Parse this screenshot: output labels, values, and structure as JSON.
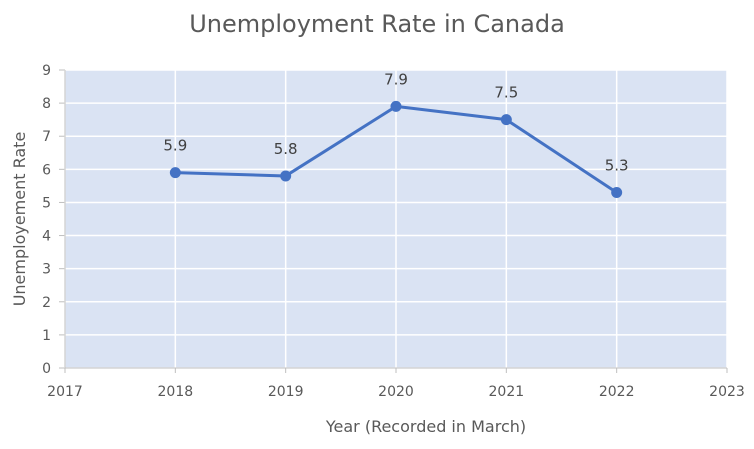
{
  "chart_data": {
    "type": "line",
    "title": "Unemployment Rate in Canada",
    "xlabel": "Year (Recorded in March)",
    "ylabel": "Unemployement Rate",
    "x": [
      2018,
      2019,
      2020,
      2021,
      2022
    ],
    "series": [
      {
        "values": [
          5.9,
          5.8,
          7.9,
          7.5,
          5.3
        ]
      }
    ],
    "data_labels": [
      "5.9",
      "5.8",
      "7.9",
      "7.5",
      "5.3"
    ],
    "xlim": [
      2017,
      2023
    ],
    "ylim": [
      0,
      9
    ],
    "xticks": [
      "2017",
      "2018",
      "2019",
      "2020",
      "2021",
      "2022",
      "2023"
    ],
    "yticks": [
      "0",
      "1",
      "2",
      "3",
      "4",
      "5",
      "6",
      "7",
      "8",
      "9"
    ],
    "grid": true,
    "legend": "none",
    "colors": {
      "line": "#4472c4",
      "plot_background": "#dae3f3",
      "grid": "#ffffff"
    }
  }
}
